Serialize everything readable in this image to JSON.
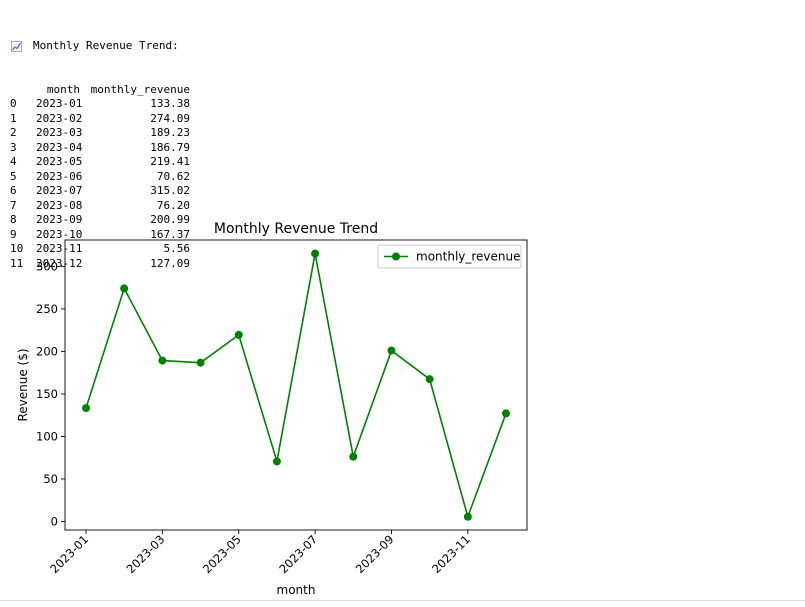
{
  "output": {
    "heading": "Monthly Revenue Trend:",
    "emoji_icon": "chart-increasing-icon",
    "columns": [
      "month",
      "monthly_revenue"
    ],
    "rows": [
      {
        "index": "0",
        "month": "2023-01",
        "monthly_revenue": "133.38"
      },
      {
        "index": "1",
        "month": "2023-02",
        "monthly_revenue": "274.09"
      },
      {
        "index": "2",
        "month": "2023-03",
        "monthly_revenue": "189.23"
      },
      {
        "index": "3",
        "month": "2023-04",
        "monthly_revenue": "186.79"
      },
      {
        "index": "4",
        "month": "2023-05",
        "monthly_revenue": "219.41"
      },
      {
        "index": "5",
        "month": "2023-06",
        "monthly_revenue": "70.62"
      },
      {
        "index": "6",
        "month": "2023-07",
        "monthly_revenue": "315.02"
      },
      {
        "index": "7",
        "month": "2023-08",
        "monthly_revenue": "76.20"
      },
      {
        "index": "8",
        "month": "2023-09",
        "monthly_revenue": "200.99"
      },
      {
        "index": "9",
        "month": "2023-10",
        "monthly_revenue": "167.37"
      },
      {
        "index": "10",
        "month": "2023-11",
        "monthly_revenue": "5.56"
      },
      {
        "index": "11",
        "month": "2023-12",
        "monthly_revenue": "127.09"
      }
    ]
  },
  "chart_data": {
    "type": "line",
    "title": "Monthly Revenue Trend",
    "xlabel": "month",
    "ylabel": "Revenue ($)",
    "x": [
      "2023-01",
      "2023-02",
      "2023-03",
      "2023-04",
      "2023-05",
      "2023-06",
      "2023-07",
      "2023-08",
      "2023-09",
      "2023-10",
      "2023-11",
      "2023-12"
    ],
    "xticks": [
      "2023-01",
      "2023-03",
      "2023-05",
      "2023-07",
      "2023-09",
      "2023-11"
    ],
    "yticks": [
      0,
      50,
      100,
      150,
      200,
      250,
      300
    ],
    "ylim": [
      -10,
      331
    ],
    "series": [
      {
        "name": "monthly_revenue",
        "color": "#008000",
        "marker": "circle",
        "values": [
          133.38,
          274.09,
          189.23,
          186.79,
          219.41,
          70.62,
          315.02,
          76.2,
          200.99,
          167.37,
          5.56,
          127.09
        ]
      }
    ],
    "legend": "top-right",
    "grid": false
  }
}
